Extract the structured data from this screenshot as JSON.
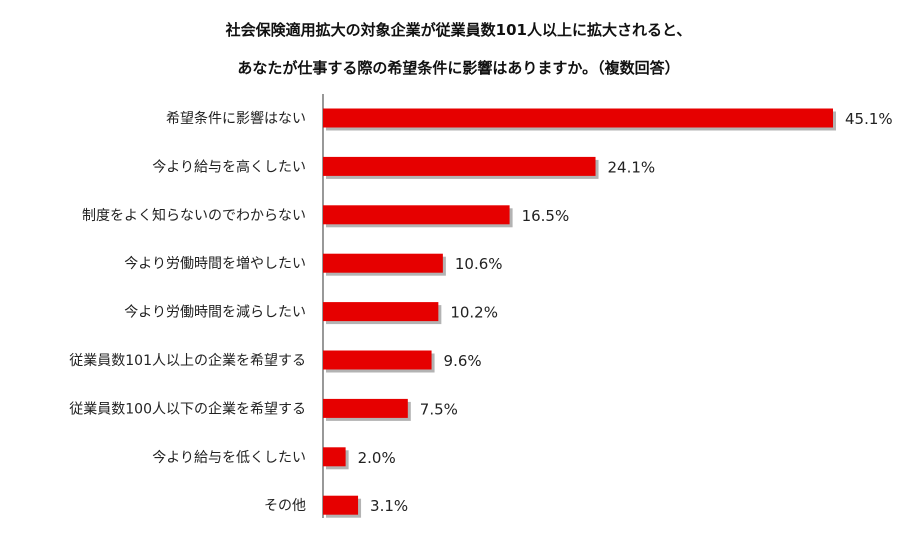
{
  "chart_data": {
    "type": "bar",
    "orientation": "horizontal",
    "title_lines": [
      "社会保険適用拡大の対象企業が従業員数101人以上に拡大されると、",
      "あなたが仕事する際の希望条件に影響はありますか。（複数回答）"
    ],
    "categories": [
      "希望条件に影響はない",
      "今より給与を高くしたい",
      "制度をよく知らないのでわからない",
      "今より労働時間を増やしたい",
      "今より労働時間を減らしたい",
      "従業員数101人以上の企業を希望する",
      "従業員数100人以下の企業を希望する",
      "今より給与を低くしたい",
      "その他"
    ],
    "values": [
      45.1,
      24.1,
      16.5,
      10.6,
      10.2,
      9.6,
      7.5,
      2.0,
      3.1
    ],
    "value_labels": [
      "45.1%",
      "24.1%",
      "16.5%",
      "10.6%",
      "10.2%",
      "9.6%",
      "7.5%",
      "2.0%",
      "3.1%"
    ],
    "unit": "%",
    "xlim": [
      0,
      45.1
    ],
    "grid": false,
    "legend": "none",
    "bar_color": "#e60000",
    "bar_shadow_color": "#9a9a9a",
    "axis_color": "#555555"
  }
}
